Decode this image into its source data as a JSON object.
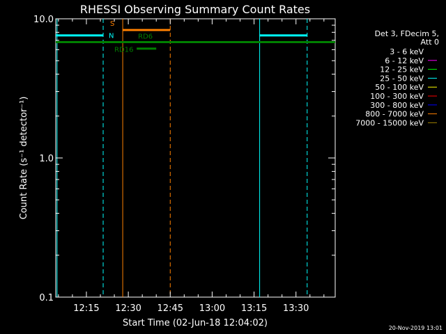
{
  "chart_data": {
    "type": "line",
    "title": "RHESSI Observing Summary Count Rates",
    "xlabel_prefix": "Start Time (02-Jun-18 12:04:02)",
    "ylabel": "Count Rate (s⁻¹ detector⁻¹)",
    "y_scale": "log",
    "ylim": [
      0.1,
      10.0
    ],
    "y_ticks": [
      {
        "value": 0.1,
        "label": "0.1"
      },
      {
        "value": 1.0,
        "label": "1.0"
      },
      {
        "value": 10.0,
        "label": "10.0"
      }
    ],
    "xlim_minutes": [
      "12:04:02",
      "13:44:02"
    ],
    "x_ticks": [
      {
        "time": "12:15",
        "label": "12:15"
      },
      {
        "time": "12:30",
        "label": "12:30"
      },
      {
        "time": "12:45",
        "label": "12:45"
      },
      {
        "time": "13:00",
        "label": "13:00"
      },
      {
        "time": "13:15",
        "label": "13:15"
      },
      {
        "time": "13:30",
        "label": "13:30"
      }
    ],
    "legend_header": [
      "Det 3, FDecim 5,",
      "Att 0"
    ],
    "legend": [
      {
        "label": "3 - 6 keV",
        "color": "#000000"
      },
      {
        "label": "6 - 12 keV",
        "color": "#ff00ff"
      },
      {
        "label": "12 - 25 keV",
        "color": "#00ff00"
      },
      {
        "label": "25 - 50 keV",
        "color": "#00ffff"
      },
      {
        "label": "50 - 100 keV",
        "color": "#ffff00"
      },
      {
        "label": "100 - 300 keV",
        "color": "#ff0000"
      },
      {
        "label": "300 - 800 keV",
        "color": "#0000ff"
      },
      {
        "label": "800 - 7000 keV",
        "color": "#ff8000"
      },
      {
        "label": "7000 - 15000 keV",
        "color": "#a08000"
      }
    ],
    "vertical_lines": [
      {
        "time": "12:04:30",
        "color": "#00ffff",
        "style": "solid"
      },
      {
        "time": "12:21:00",
        "color": "#00ffff",
        "style": "dashed"
      },
      {
        "time": "12:28:00",
        "color": "#ff8000",
        "style": "solid"
      },
      {
        "time": "12:45:00",
        "color": "#ff8000",
        "style": "dashed"
      },
      {
        "time": "13:17:00",
        "color": "#00ffff",
        "style": "solid"
      },
      {
        "time": "13:34:00",
        "color": "#00ffff",
        "style": "dashed"
      }
    ],
    "flag_bars": [
      {
        "name": "N",
        "color": "#00ffff",
        "y": 7.6,
        "segments": [
          [
            "12:04:02",
            "12:21:00"
          ],
          [
            "13:17:00",
            "13:34:00"
          ]
        ],
        "label": "N",
        "label_time": "12:23:00",
        "label_y": 7.3
      },
      {
        "name": "S",
        "color": "#ff8000",
        "y": 8.3,
        "segments": [
          [
            "12:28:00",
            "12:45:00"
          ]
        ],
        "label": "S",
        "label_time": "12:23:30",
        "label_y": 8.9
      },
      {
        "name": "RD6",
        "color": "#008000",
        "y": 6.8,
        "segments": [
          [
            "12:04:02",
            "13:44:02"
          ]
        ],
        "label": "RD6",
        "label_time": "12:33:30",
        "label_y": 7.2
      },
      {
        "name": "RD16",
        "color": "#008000",
        "y": 6.1,
        "segments": [
          [
            "12:33:00",
            "12:40:00"
          ]
        ],
        "label": "RD16",
        "label_time": "12:25:00",
        "label_y": 5.8
      }
    ]
  },
  "footer_date": "20-Nov-2019 13:01"
}
